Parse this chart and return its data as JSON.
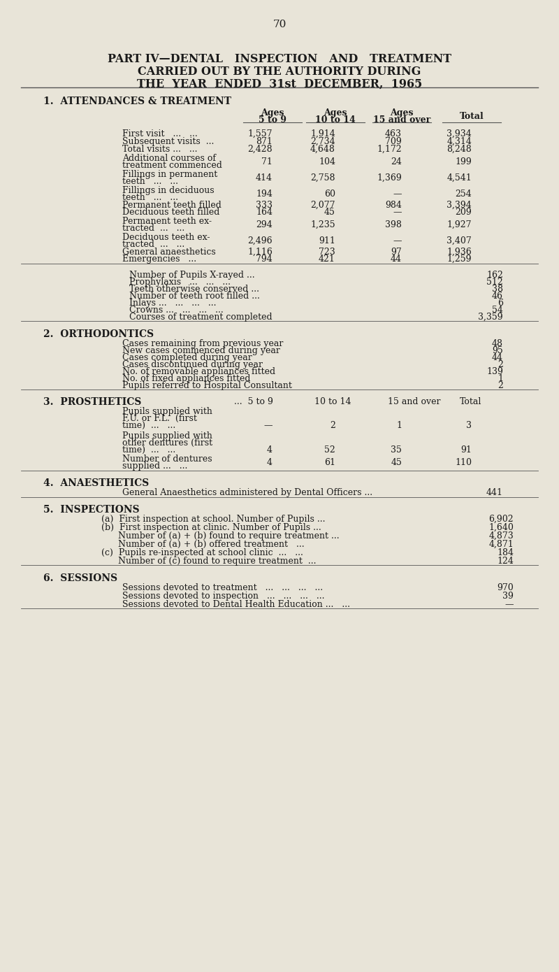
{
  "page_num": "70",
  "title_line1": "PART IV—DENTAL   INSPECTION   AND   TREATMENT",
  "title_line2": "CARRIED OUT BY THE AUTHORITY DURING",
  "title_line3": "THE  YEAR  ENDED  31st  DECEMBER,  1965",
  "section1_title": "1.  ATTENDANCES & TREATMENT",
  "col_headers": [
    "Ages\n5 to 9",
    "Ages\n10 to 14",
    "Ages\n15 and over",
    "Total"
  ],
  "attendance_rows": [
    [
      "First visit   ...   ...",
      "1,557",
      "1,914",
      "463",
      "3,934"
    ],
    [
      "Subsequent visits  ...",
      "871",
      "2,734",
      "709",
      "4,314"
    ],
    [
      "Total visits ...   ...",
      "2,428",
      "4,648",
      "1,172",
      "8,248"
    ],
    [
      "Additional courses of\ntreatment commenced",
      "71",
      "104",
      "24",
      "199"
    ],
    [
      "Fillings in permanent\nteeth   ...   ...",
      "414",
      "2,758",
      "1,369",
      "4,541"
    ],
    [
      "Fillings in deciduous\nteeth   ...   ...",
      "194",
      "60",
      "—",
      "254"
    ],
    [
      "Permanent teeth filled",
      "333",
      "2,077",
      "984",
      "3,394"
    ],
    [
      "Deciduous teeth filled",
      "164",
      "45",
      "—",
      "209"
    ],
    [
      "Permanent teeth ex-\ntracted  ...   ...",
      "294",
      "1,235",
      "398",
      "1,927"
    ],
    [
      "Deciduous teeth ex-\ntracted  ...   ...",
      "2,496",
      "911",
      "—",
      "3,407"
    ],
    [
      "General anaesthetics",
      "1,116",
      "723",
      "97",
      "1,936"
    ],
    [
      "Emergencies   ...",
      "794",
      "421",
      "44",
      "1,259"
    ]
  ],
  "single_value_rows": [
    [
      "Number of Pupils X-rayed ...",
      "162"
    ],
    [
      "Prophylaxis   ...   ...   ...",
      "512"
    ],
    [
      "Teeth otherwise conserved ...",
      "38"
    ],
    [
      "Number of teeth root filled ...",
      "46"
    ],
    [
      "Inlays ...   ...   ...   ...",
      "6"
    ],
    [
      "Crowns ...   ...   ...   ...",
      "54"
    ],
    [
      "Courses of treatment completed",
      "3,359"
    ]
  ],
  "section2_title": "2.  ORTHODONTICS",
  "ortho_rows": [
    [
      "Cases remaining from previous year",
      "48"
    ],
    [
      "New cases commenced during year",
      "95"
    ],
    [
      "Cases completed during year",
      "44"
    ],
    [
      "Cases discontinued during year",
      "2"
    ],
    [
      "No. of removable appliances fitted",
      "139"
    ],
    [
      "No. of fixed appliances fitted",
      "1"
    ],
    [
      "Pupils referred to Hospital Consultant",
      "2"
    ]
  ],
  "section3_title": "3.  PROSTHETICS",
  "prosth_col_headers": [
    "5 to 9",
    "10 to 14",
    "15 and over",
    "Total"
  ],
  "prosth_rows": [
    [
      "Pupils supplied with\nF.U. or F.L. (first\ntime)   ...   ...",
      "—",
      "2",
      "1",
      "3"
    ],
    [
      "Pupils supplied with\nother dentures (first\ntime)   ...   ...",
      "4",
      "52",
      "35",
      "91"
    ],
    [
      "Number of dentures\nsupplied ...   ...",
      "4",
      "61",
      "45",
      "110"
    ]
  ],
  "section4_title": "4.  ANAESTHETICS",
  "anaes_text": "General Anaesthetics administered by Dental Officers ...",
  "anaes_value": "441",
  "section5_title": "5.  INSPECTIONS",
  "inspect_rows": [
    [
      "(a)  First inspection at school. Number of Pupils ...",
      "6,902"
    ],
    [
      "(b)  First inspection at clinic. Number of Pupils ...",
      "1,640"
    ],
    [
      "      Number of (a) + (b) found to require treatment ...",
      "4,873"
    ],
    [
      "      Number of (a) + (b) offered treatment   ...",
      "4,871"
    ],
    [
      "(c)  Pupils re-inspected at school clinic  ...   ...",
      "184"
    ],
    [
      "      Number of (c) found to require treatment  ...",
      "124"
    ]
  ],
  "section6_title": "6.  SESSIONS",
  "session_rows": [
    [
      "Sessions devoted to treatment   ...   ...   ...   ...",
      "970"
    ],
    [
      "Sessions devoted to inspection   ...   ...   ...   ...",
      "39"
    ],
    [
      "Sessions devoted to Dental Health Education ...   ...",
      "—"
    ]
  ],
  "bg_color": "#e8e4d8",
  "text_color": "#1a1a1a",
  "line_color": "#555555"
}
